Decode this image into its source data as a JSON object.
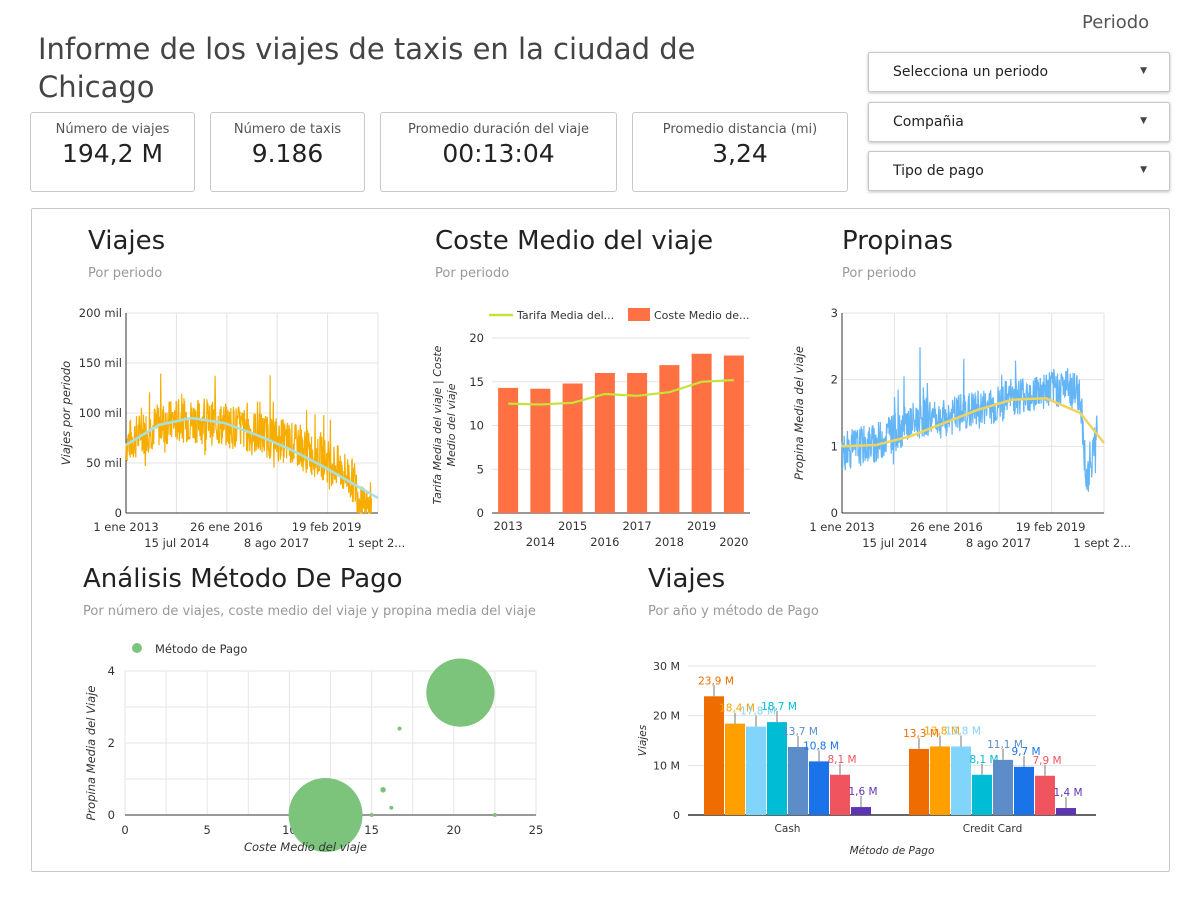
{
  "header": {
    "title": "Informe de los viajes de taxis en la ciudad de Chicago",
    "period_label": "Periodo"
  },
  "kpis": [
    {
      "label": "Número de viajes",
      "value": "194,2 M"
    },
    {
      "label": "Número de taxis",
      "value": "9.186"
    },
    {
      "label": "Promedio duración del viaje",
      "value": "00:13:04"
    },
    {
      "label": "Promedio distancia (mi)",
      "value": "3,24"
    }
  ],
  "filters": [
    {
      "label": "Selecciona un periodo"
    },
    {
      "label": "Compañia"
    },
    {
      "label": "Tipo de pago"
    }
  ],
  "colors": {
    "trips_line": "#f7ad00",
    "trips_trend": "#a8e0e2",
    "bar_orange": "#ff7043",
    "fare_line": "#c6e23b",
    "tips_line": "#64b5f6",
    "tips_trend": "#f0d35c",
    "bubble": "#7cc47c"
  },
  "charts": {
    "viajes": {
      "title": "Viajes",
      "subtitle": "Por periodo",
      "chart_data": {
        "type": "line",
        "ylabel": "Viajes por periodo",
        "y_ticks": [
          "0",
          "50 mil",
          "100 mil",
          "150 mil",
          "200 mil"
        ],
        "ylim": [
          0,
          200000
        ],
        "x_ticks_top": [
          "1 ene 2013",
          "26 ene 2016",
          "19 feb 2019"
        ],
        "x_ticks_bottom": [
          "15 jul 2014",
          "8 ago 2017",
          "1 sept 2..."
        ],
        "series": [
          {
            "x": [
              2013.0,
              2013.5,
              2014.0,
              2014.5,
              2015.0,
              2015.5,
              2016.0,
              2016.5,
              2017.0,
              2017.5,
              2018.0,
              2018.5,
              2019.0,
              2019.5,
              2020.0,
              2020.2,
              2020.5
            ],
            "values": [
              70000,
              80000,
              88000,
              92000,
              93000,
              90000,
              88000,
              85000,
              80000,
              75000,
              70000,
              62000,
              55000,
              45000,
              30000,
              5000,
              3000
            ]
          }
        ],
        "trend": {
          "x": [
            2013.0,
            2014.0,
            2015.0,
            2016.0,
            2017.0,
            2018.0,
            2019.0,
            2020.0,
            2020.7
          ],
          "values": [
            68000,
            88000,
            95000,
            90000,
            78000,
            64000,
            47000,
            28000,
            15000
          ]
        }
      }
    },
    "coste": {
      "title": "Coste Medio del viaje",
      "subtitle": "Por periodo",
      "chart_data": {
        "type": "bar",
        "ylabel": "Tarifa Media del viaje | Coste Medio del viaje",
        "legend": [
          "Tarifa Media del...",
          "Coste Medio de..."
        ],
        "categories": [
          "2013",
          "2014",
          "2015",
          "2016",
          "2017",
          "2018",
          "2019",
          "2020"
        ],
        "ylim": [
          0,
          20
        ],
        "y_ticks": [
          "0",
          "5",
          "10",
          "15",
          "20"
        ],
        "series": [
          {
            "name": "Coste Medio de...",
            "values": [
              14.3,
              14.2,
              14.8,
              16.0,
              16.0,
              16.9,
              18.2,
              18.0
            ]
          },
          {
            "name": "Tarifa Media del...",
            "values": [
              12.5,
              12.4,
              12.6,
              13.6,
              13.4,
              13.8,
              15.0,
              15.2
            ]
          }
        ]
      }
    },
    "propinas": {
      "title": "Propinas",
      "subtitle": "Por periodo",
      "chart_data": {
        "type": "line",
        "ylabel": "Propina Media del viaje",
        "y_ticks": [
          "0",
          "1",
          "2",
          "3"
        ],
        "ylim": [
          0,
          3
        ],
        "x_ticks_top": [
          "1 ene 2013",
          "26 ene 2016",
          "19 feb 2019"
        ],
        "x_ticks_bottom": [
          "15 jul 2014",
          "8 ago 2017",
          "1 sept 2..."
        ],
        "series": [
          {
            "x": [
              2013.0,
              2013.5,
              2014.0,
              2014.5,
              2015.0,
              2015.5,
              2016.0,
              2016.5,
              2017.0,
              2017.5,
              2018.0,
              2018.5,
              2019.0,
              2019.5,
              2020.0,
              2020.2,
              2020.5
            ],
            "values": [
              0.9,
              1.0,
              1.05,
              1.2,
              1.35,
              1.45,
              1.4,
              1.5,
              1.55,
              1.6,
              1.75,
              1.8,
              1.85,
              1.9,
              1.8,
              0.4,
              1.3
            ]
          }
        ],
        "trend": {
          "x": [
            2013.0,
            2014.0,
            2015.0,
            2016.0,
            2017.0,
            2018.0,
            2019.0,
            2020.0,
            2020.7
          ],
          "values": [
            1.0,
            1.02,
            1.15,
            1.35,
            1.55,
            1.7,
            1.72,
            1.5,
            1.05
          ]
        }
      }
    },
    "metodo": {
      "title": "Análisis Método De Pago",
      "subtitle": "Por número de viajes, coste medio del viaje y propina media del viaje",
      "chart_data": {
        "type": "scatter",
        "legend": [
          "Método de Pago"
        ],
        "xlabel": "Coste Medio del viaje",
        "ylabel": "Propina Media del Viaje",
        "xlim": [
          0,
          25
        ],
        "ylim": [
          0,
          4
        ],
        "x_ticks": [
          "0",
          "5",
          "10",
          "15",
          "20",
          "25"
        ],
        "y_ticks": [
          "0",
          "2",
          "4"
        ],
        "points": [
          {
            "x": 12.2,
            "y": 0.0,
            "size": 103500000
          },
          {
            "x": 20.4,
            "y": 3.4,
            "size": 88000000
          },
          {
            "x": 16.7,
            "y": 2.4,
            "size": 300000
          },
          {
            "x": 15.7,
            "y": 0.7,
            "size": 600000
          },
          {
            "x": 16.2,
            "y": 0.2,
            "size": 250000
          },
          {
            "x": 22.5,
            "y": 0.0,
            "size": 100000
          },
          {
            "x": 15.0,
            "y": 0.0,
            "size": 80000
          }
        ]
      }
    },
    "viajes_pago": {
      "title": "Viajes",
      "subtitle": "Por año y método de Pago",
      "chart_data": {
        "type": "bar",
        "xlabel": "Método de Pago",
        "ylabel": "Viajes",
        "ylim": [
          0,
          30
        ],
        "y_ticks": [
          "0",
          "10 M",
          "20 M",
          "30 M"
        ],
        "categories": [
          "Cash",
          "Credit Card"
        ],
        "series_colors": [
          "#ef6c00",
          "#ffa000",
          "#81d4fa",
          "#00bcd4",
          "#5c8dc9",
          "#1a73e8",
          "#f0545e",
          "#5e35b1"
        ],
        "groups": [
          {
            "values": [
              23.9,
              18.4,
              17.8,
              18.7,
              13.7,
              10.8,
              8.1,
              1.6
            ],
            "labels": [
              "23,9 M",
              "18,4 M",
              "17,8 M",
              "18,7 M",
              "13,7 M",
              "10,8 M",
              "8,1 M",
              "1,6 M"
            ]
          },
          {
            "values": [
              13.3,
              13.8,
              13.8,
              8.1,
              11.1,
              9.7,
              7.9,
              1.4
            ],
            "labels": [
              "13,3 M",
              "13,8 M",
              "13,8 M",
              "8,1 M",
              "11,1 M",
              "9,7 M",
              "7,9 M",
              "1,4 M"
            ]
          }
        ]
      }
    }
  }
}
